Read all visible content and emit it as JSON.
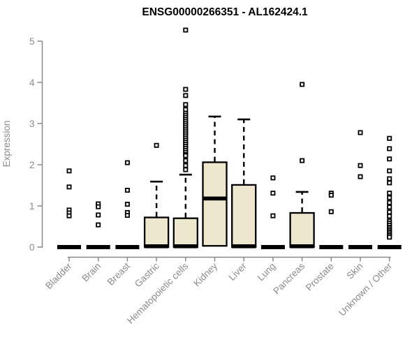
{
  "title": "ENSG00000266351 - AL162424.1",
  "colors": {
    "box_fill": "#EDE7CE",
    "box_stroke": "#000000",
    "median": "#000000",
    "outlier": "#000000",
    "axis": "#8a8a8a",
    "title": "#000000",
    "background": "#ffffff"
  },
  "chart_data": {
    "type": "boxplot",
    "title": "ENSG00000266351 - AL162424.1",
    "ylabel": "Expression",
    "xlabel": "",
    "ylim": [
      0,
      5.3
    ],
    "yticks": [
      0,
      1,
      2,
      3,
      4,
      5
    ],
    "grid": false,
    "legend": "none",
    "categories": [
      "Bladder",
      "Brain",
      "Breast",
      "Gastric",
      "Hematopoietic cells",
      "Kidney",
      "Liver",
      "Lung",
      "Pancreas",
      "Prostate",
      "Skin",
      "Unknown / Other"
    ],
    "series": [
      {
        "category": "Bladder",
        "q1": 0,
        "median": 0,
        "q3": 0,
        "whisker_low": 0,
        "whisker_high": 0,
        "outliers": [
          1.85,
          1.46,
          0.9,
          0.83,
          0.76
        ]
      },
      {
        "category": "Brain",
        "q1": 0,
        "median": 0,
        "q3": 0,
        "whisker_low": 0,
        "whisker_high": 0,
        "outliers": [
          1.05,
          0.98,
          0.78,
          0.54
        ]
      },
      {
        "category": "Breast",
        "q1": 0,
        "median": 0,
        "q3": 0,
        "whisker_low": 0,
        "whisker_high": 0,
        "outliers": [
          2.05,
          1.38,
          1.04,
          0.84,
          0.77
        ]
      },
      {
        "category": "Gastric",
        "q1": 0,
        "median": 0.02,
        "q3": 0.72,
        "whisker_low": 0,
        "whisker_high": 1.59,
        "outliers": [
          2.47
        ]
      },
      {
        "category": "Hematopoietic cells",
        "q1": 0,
        "median": 0.02,
        "q3": 0.7,
        "whisker_low": 0,
        "whisker_high": 1.76,
        "outliers": [
          5.27,
          3.83,
          3.68,
          3.46,
          3.34,
          3.25,
          3.2,
          3.15,
          3.1,
          3.05,
          3.0,
          2.95,
          2.9,
          2.85,
          2.8,
          2.75,
          2.7,
          2.65,
          2.6,
          2.55,
          2.5,
          2.45,
          2.4,
          2.35,
          2.3,
          2.25,
          2.22,
          2.1,
          1.98,
          1.88
        ]
      },
      {
        "category": "Kidney",
        "q1": 0.03,
        "median": 1.18,
        "q3": 2.06,
        "whisker_low": 0.03,
        "whisker_high": 3.17,
        "outliers": []
      },
      {
        "category": "Liver",
        "q1": 0,
        "median": 0.02,
        "q3": 1.51,
        "whisker_low": 0,
        "whisker_high": 3.1,
        "outliers": []
      },
      {
        "category": "Lung",
        "q1": 0,
        "median": 0,
        "q3": 0,
        "whisker_low": 0,
        "whisker_high": 0,
        "outliers": [
          1.68,
          1.31,
          0.76
        ]
      },
      {
        "category": "Pancreas",
        "q1": 0,
        "median": 0.02,
        "q3": 0.83,
        "whisker_low": 0,
        "whisker_high": 1.34,
        "outliers": [
          3.95,
          2.1
        ]
      },
      {
        "category": "Prostate",
        "q1": 0,
        "median": 0,
        "q3": 0,
        "whisker_low": 0,
        "whisker_high": 0,
        "outliers": [
          1.31,
          1.26,
          0.86
        ]
      },
      {
        "category": "Skin",
        "q1": 0,
        "median": 0,
        "q3": 0,
        "whisker_low": 0,
        "whisker_high": 0,
        "outliers": [
          2.78,
          1.98,
          1.71
        ]
      },
      {
        "category": "Unknown / Other",
        "q1": 0,
        "median": 0,
        "q3": 0,
        "whisker_low": 0,
        "whisker_high": 0,
        "outliers": [
          2.64,
          2.39,
          2.14,
          1.85,
          1.66,
          1.56,
          1.31,
          1.2,
          1.08,
          0.97,
          0.85,
          0.75,
          0.63,
          0.58,
          0.53,
          0.48,
          0.44,
          0.4,
          0.36,
          0.32,
          0.28,
          0.24
        ]
      }
    ]
  }
}
